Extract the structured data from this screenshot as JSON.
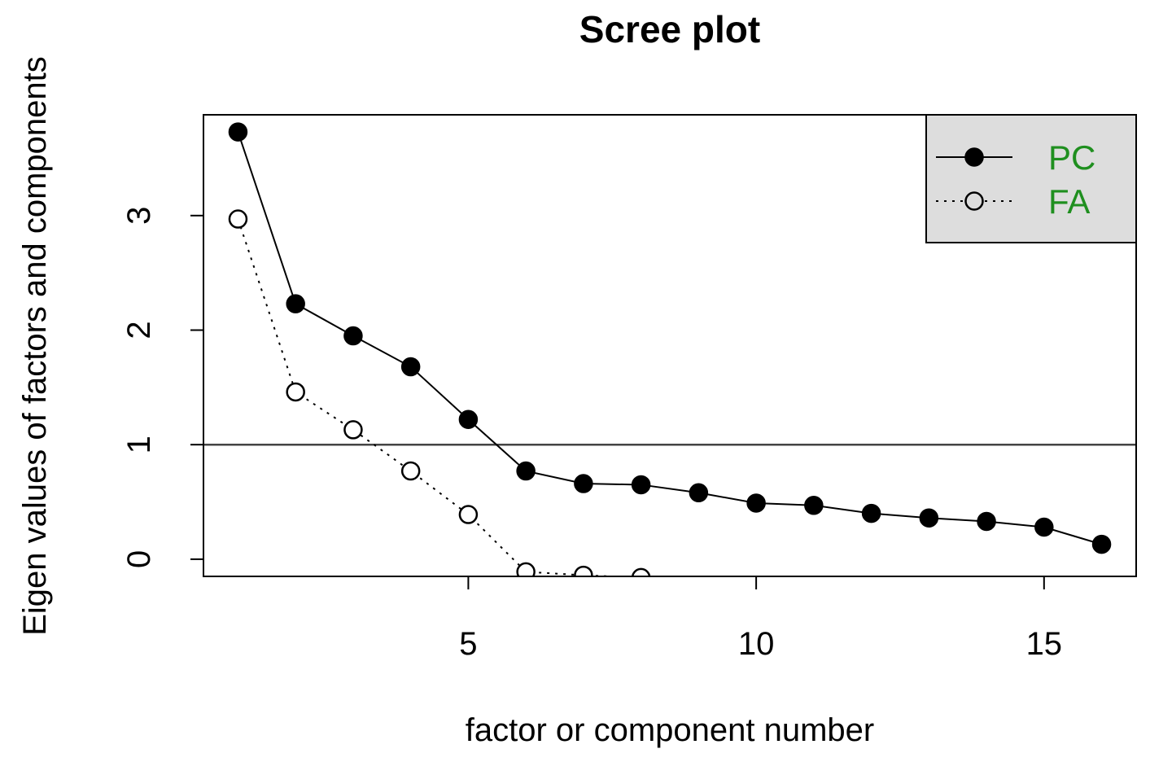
{
  "chart_data": {
    "type": "line",
    "title": "Scree plot",
    "x_label": "factor or component number",
    "y_label": "Eigen values of factors and components",
    "x": [
      1,
      2,
      3,
      4,
      5,
      6,
      7,
      8,
      9,
      10,
      11,
      12,
      13,
      14,
      15,
      16
    ],
    "series": [
      {
        "name": "PC",
        "color": "#000000",
        "marker": "filled",
        "line": "solid",
        "values": [
          3.73,
          2.23,
          1.95,
          1.68,
          1.22,
          0.77,
          0.66,
          0.65,
          0.58,
          0.49,
          0.47,
          0.4,
          0.36,
          0.33,
          0.28,
          0.13
        ]
      },
      {
        "name": "FA",
        "color": "#000000",
        "marker": "open",
        "line": "dotted",
        "values": [
          2.97,
          1.46,
          1.13,
          0.77,
          0.39,
          -0.11,
          -0.14,
          -0.16,
          null,
          null,
          null,
          null,
          null,
          null,
          null,
          null
        ]
      }
    ],
    "hline": 1,
    "xlim": [
      0.4,
      16.6
    ],
    "xticks": [
      5,
      10,
      15
    ],
    "ylim": [
      -0.15,
      3.88
    ],
    "yticks": [
      0,
      1,
      2,
      3
    ],
    "legend": "topright",
    "legend_fill": "#dddddd",
    "legend_text_color": "#1f8f1f"
  }
}
